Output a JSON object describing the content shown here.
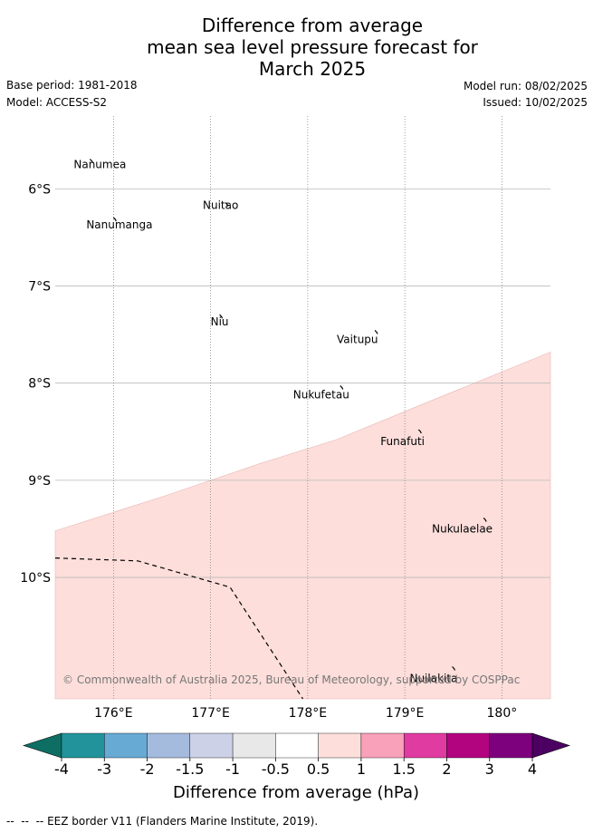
{
  "title": {
    "line1": "Difference from average",
    "line2": "mean sea level pressure forecast for",
    "line3": "March 2025"
  },
  "meta": {
    "base_period": "Base period: 1981-2018",
    "model": "Model: ACCESS-S2",
    "model_run": "Model run: 08/02/2025",
    "issued": "Issued: 10/02/2025"
  },
  "map": {
    "lon_range": [
      175.4,
      180.5
    ],
    "lat_range": [
      -11.25,
      -5.25
    ],
    "lon_ticks": [
      {
        "value": 176,
        "label": "176°E"
      },
      {
        "value": 177,
        "label": "177°E"
      },
      {
        "value": 178,
        "label": "178°E"
      },
      {
        "value": 179,
        "label": "179°E"
      },
      {
        "value": 180,
        "label": "180°"
      }
    ],
    "lat_ticks": [
      {
        "value": -6,
        "label": "6°S"
      },
      {
        "value": -7,
        "label": "7°S"
      },
      {
        "value": -8,
        "label": "8°S"
      },
      {
        "value": -9,
        "label": "9°S"
      },
      {
        "value": -10,
        "label": "10°S"
      }
    ],
    "anomaly_region": {
      "color": "#fddedb",
      "band": "0.5 to 1 hPa",
      "boundary": [
        [
          175.4,
          -9.52
        ],
        [
          176.5,
          -9.17
        ],
        [
          177.5,
          -8.83
        ],
        [
          178.3,
          -8.58
        ],
        [
          179.2,
          -8.21
        ],
        [
          180.5,
          -7.68
        ]
      ]
    },
    "eez_border": [
      [
        175.4,
        -9.8
      ],
      [
        176.25,
        -9.83
      ],
      [
        177.2,
        -10.1
      ],
      [
        177.95,
        -11.25
      ]
    ],
    "places": [
      {
        "name": "Nanumea",
        "lon": 175.59,
        "lat": -5.75
      },
      {
        "name": "Nuitao",
        "lon": 176.92,
        "lat": -6.17
      },
      {
        "name": "Nanumanga",
        "lon": 175.72,
        "lat": -6.37
      },
      {
        "name": "Niu",
        "lon": 177.0,
        "lat": -7.37
      },
      {
        "name": "Vaitupu",
        "lon": 178.3,
        "lat": -7.55
      },
      {
        "name": "Nukufetau",
        "lon": 177.85,
        "lat": -8.12
      },
      {
        "name": "Funafuti",
        "lon": 178.75,
        "lat": -8.6
      },
      {
        "name": "Nukulaelae",
        "lon": 179.28,
        "lat": -9.5
      },
      {
        "name": "Nuilakita",
        "lon": 179.05,
        "lat": -11.04
      }
    ],
    "copyright": "© Commonwealth of Australia 2025, Bureau of Meteorology, supported by COSPPac"
  },
  "colorbar": {
    "colors": [
      "#0e6e64",
      "#22939a",
      "#67abd4",
      "#a5bbde",
      "#cdd1e8",
      "#e8e8e8",
      "#ffffff",
      "#fddedb",
      "#f9a0ba",
      "#e03ba1",
      "#b30480",
      "#7d007d",
      "#4b0062"
    ],
    "tick_labels": [
      "-4",
      "-3",
      "-2",
      "-1.5",
      "-1",
      "-0.5",
      "0.5",
      "1",
      "1.5",
      "2",
      "3",
      "4"
    ],
    "label": "Difference from average (hPa)"
  },
  "legend": {
    "eez_text": "EEZ border V11 (Flanders Marine Institute, 2019)."
  }
}
